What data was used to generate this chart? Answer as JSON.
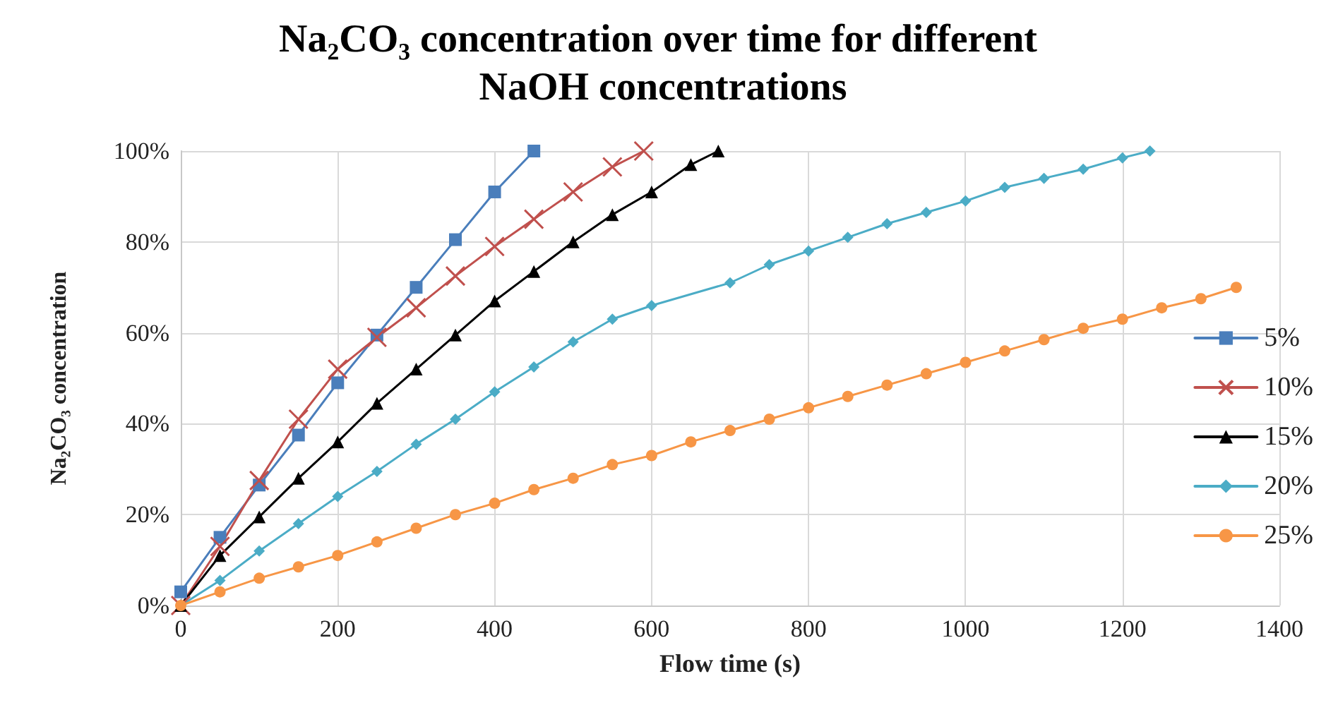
{
  "chart_data": {
    "type": "line",
    "title": "Na₂CO₃ concentration over time for different NaOH concentrations",
    "xlabel": "Flow time (s)",
    "ylabel": "Na₂CO₃ concentration",
    "xlim": [
      0,
      1400
    ],
    "xticks": [
      0,
      200,
      400,
      600,
      800,
      1000,
      1200,
      1400
    ],
    "ylim": [
      0,
      100
    ],
    "yticks": [
      {
        "value": 0,
        "label": "0%"
      },
      {
        "value": 20,
        "label": "20%"
      },
      {
        "value": 40,
        "label": "40%"
      },
      {
        "value": 60,
        "label": "60%"
      },
      {
        "value": 80,
        "label": "80%"
      },
      {
        "value": 100,
        "label": "100%"
      }
    ],
    "grid": true,
    "legend": "right",
    "line_style": "solid",
    "series": [
      {
        "name": "5%",
        "color": "#4a7ebb",
        "marker": "square",
        "x": [
          0,
          50,
          100,
          150,
          200,
          250,
          300,
          350,
          400,
          450
        ],
        "values": [
          3,
          15,
          26.5,
          37.5,
          49,
          59.5,
          70,
          80.5,
          91,
          100
        ]
      },
      {
        "name": "10%",
        "color": "#c0504d",
        "marker": "cross",
        "x": [
          0,
          50,
          100,
          150,
          200,
          250,
          300,
          350,
          400,
          450,
          500,
          550,
          590
        ],
        "values": [
          0,
          13,
          27.5,
          41,
          52,
          59,
          65.5,
          72.5,
          79,
          85,
          91,
          96.5,
          100
        ]
      },
      {
        "name": "15%",
        "color": "#000000",
        "marker": "triangle",
        "x": [
          0,
          50,
          100,
          150,
          200,
          250,
          300,
          350,
          400,
          450,
          500,
          550,
          600,
          650,
          685
        ],
        "values": [
          0,
          11,
          19.5,
          28,
          36,
          44.5,
          52,
          59.5,
          67,
          73.5,
          80,
          86,
          91,
          97,
          100
        ]
      },
      {
        "name": "20%",
        "color": "#4bacc6",
        "marker": "diamond",
        "x": [
          0,
          50,
          100,
          150,
          200,
          250,
          300,
          350,
          400,
          450,
          500,
          550,
          600,
          700,
          750,
          800,
          850,
          900,
          950,
          1000,
          1050,
          1100,
          1150,
          1200,
          1235
        ],
        "values": [
          0,
          5.5,
          12,
          18,
          24,
          29.5,
          35.5,
          41,
          47,
          52.5,
          58,
          63,
          66,
          71,
          75,
          78,
          81,
          84,
          86.5,
          89,
          92,
          94,
          96,
          98.5,
          100
        ]
      },
      {
        "name": "25%",
        "color": "#f79646",
        "marker": "circle",
        "x": [
          0,
          50,
          100,
          150,
          200,
          250,
          300,
          350,
          400,
          450,
          500,
          550,
          600,
          650,
          700,
          750,
          800,
          850,
          900,
          950,
          1000,
          1050,
          1100,
          1150,
          1200,
          1250,
          1300,
          1345
        ],
        "values": [
          0,
          3,
          6,
          8.5,
          11,
          14,
          17,
          20,
          22.5,
          25.5,
          28,
          31,
          33,
          36,
          38.5,
          41,
          43.5,
          46,
          48.5,
          51,
          53.5,
          56,
          58.5,
          61,
          63,
          65.5,
          67.5,
          70
        ]
      }
    ]
  }
}
